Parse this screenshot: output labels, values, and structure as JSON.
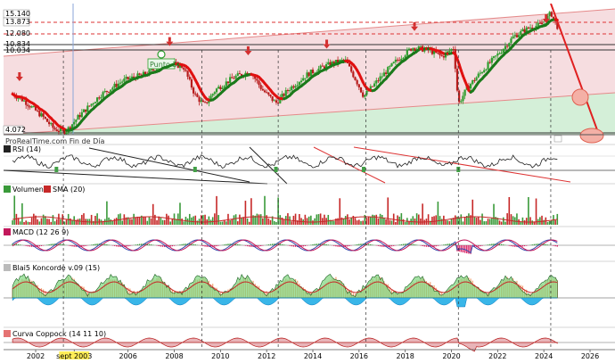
{
  "app": {
    "watermark": "ProRealTime.com Fin de Día",
    "highlighted_x_tick": "sept 2003"
  },
  "chart_data": [
    {
      "id": "price",
      "type": "candlestick",
      "ylim": [
        3800,
        15400
      ],
      "y_tick_labels": [
        "15.140",
        "13.873",
        "12.080",
        "10.834",
        "10.034",
        "4.072"
      ],
      "annotation": "Punto 3",
      "approx_path": [
        {
          "x": 2001.0,
          "y": 7400
        },
        {
          "x": 2001.5,
          "y": 6800
        },
        {
          "x": 2002.3,
          "y": 5400
        },
        {
          "x": 2002.8,
          "y": 4300
        },
        {
          "x": 2003.3,
          "y": 4072
        },
        {
          "x": 2003.9,
          "y": 5500
        },
        {
          "x": 2004.8,
          "y": 7300
        },
        {
          "x": 2005.8,
          "y": 8600
        },
        {
          "x": 2006.8,
          "y": 9200
        },
        {
          "x": 2007.7,
          "y": 10200
        },
        {
          "x": 2008.4,
          "y": 9800
        },
        {
          "x": 2008.9,
          "y": 7300
        },
        {
          "x": 2009.3,
          "y": 6400
        },
        {
          "x": 2009.8,
          "y": 7800
        },
        {
          "x": 2010.6,
          "y": 8900
        },
        {
          "x": 2011.3,
          "y": 9400
        },
        {
          "x": 2011.8,
          "y": 7800
        },
        {
          "x": 2012.4,
          "y": 6600
        },
        {
          "x": 2013.0,
          "y": 7900
        },
        {
          "x": 2013.8,
          "y": 9200
        },
        {
          "x": 2014.8,
          "y": 10100
        },
        {
          "x": 2015.4,
          "y": 10400
        },
        {
          "x": 2015.9,
          "y": 8500
        },
        {
          "x": 2016.2,
          "y": 7200
        },
        {
          "x": 2016.9,
          "y": 8800
        },
        {
          "x": 2017.6,
          "y": 10300
        },
        {
          "x": 2018.3,
          "y": 11500
        },
        {
          "x": 2019.0,
          "y": 11300
        },
        {
          "x": 2019.6,
          "y": 10700
        },
        {
          "x": 2020.1,
          "y": 11500
        },
        {
          "x": 2020.3,
          "y": 6500
        },
        {
          "x": 2020.7,
          "y": 8000
        },
        {
          "x": 2021.4,
          "y": 9600
        },
        {
          "x": 2022.1,
          "y": 11100
        },
        {
          "x": 2022.7,
          "y": 12500
        },
        {
          "x": 2023.4,
          "y": 13300
        },
        {
          "x": 2024.0,
          "y": 13600
        },
        {
          "x": 2024.3,
          "y": 14600
        },
        {
          "x": 2024.6,
          "y": 13300
        }
      ]
    },
    {
      "id": "rsi",
      "type": "line",
      "legend": "RSI (14)",
      "ylim": [
        0,
        100
      ]
    },
    {
      "id": "volume",
      "type": "bar",
      "legend": [
        "Volumen",
        "SMA (20)"
      ]
    },
    {
      "id": "macd",
      "type": "line",
      "legend": "MACD (12 26 9)"
    },
    {
      "id": "blai5",
      "type": "area",
      "legend": "Blai5 Koncorde v.09 (15)"
    },
    {
      "id": "coppock",
      "type": "area",
      "legend": "Curva Coppock (14 11 10)"
    }
  ],
  "x_axis": {
    "ticks": [
      "2002",
      "sept 2003",
      "2006",
      "2008",
      "2010",
      "2012",
      "2014",
      "2016",
      "2018",
      "2020",
      "2022",
      "2024",
      "2026"
    ],
    "tick_years": [
      2002,
      2003.67,
      2006,
      2008,
      2010,
      2012,
      2014,
      2016,
      2018,
      2020,
      2022,
      2024,
      2026
    ]
  },
  "colors": {
    "up": "#2e9e2e",
    "down": "#b71c1c",
    "ma_up": "#1b7a1b",
    "ma_down": "#e01010",
    "channel_fill": "#f6dde0",
    "green_zone": "#d4efd8",
    "target_line": "#e03030",
    "target_circle": "#f4a49a"
  }
}
